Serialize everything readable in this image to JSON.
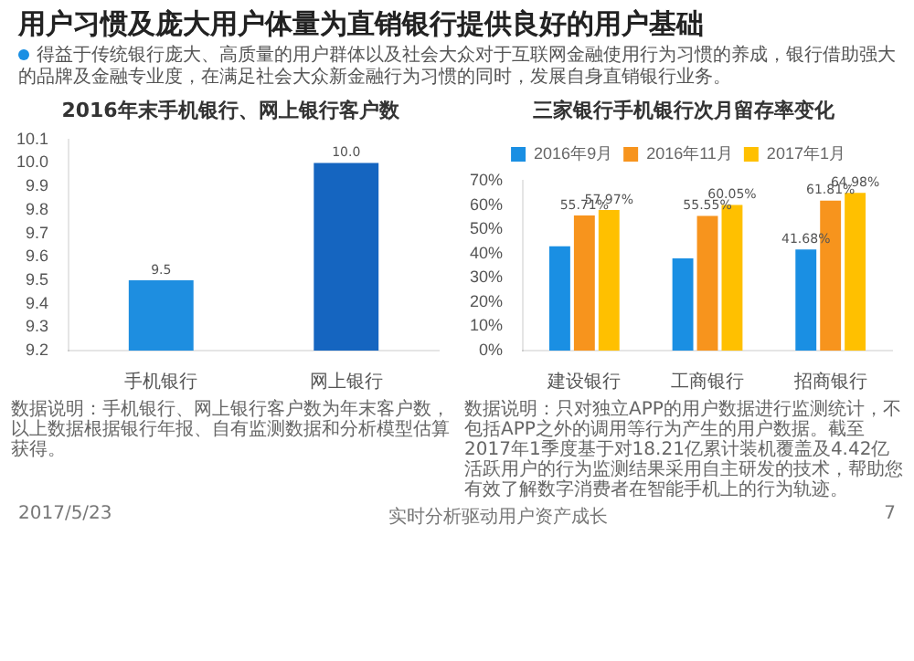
{
  "chart_data": [
    {
      "type": "bar",
      "title": "2016年末手机银行、网上银行客户数",
      "categories": [
        "手机银行",
        "网上银行"
      ],
      "values": [
        9.5,
        10.0
      ],
      "colors": [
        "#1e8ee0",
        "#1565c0"
      ],
      "value_labels": [
        "9.5",
        "10.0"
      ],
      "ylim": [
        9.2,
        10.1
      ],
      "yticks": [
        {
          "value": 9.2,
          "label": "9.2"
        },
        {
          "value": 9.3,
          "label": "9.3"
        },
        {
          "value": 9.4,
          "label": "9.4"
        },
        {
          "value": 9.5,
          "label": "9.5"
        },
        {
          "value": 9.6,
          "label": "9.6"
        },
        {
          "value": 9.7,
          "label": "9.7"
        },
        {
          "value": 9.8,
          "label": "9.8"
        },
        {
          "value": 9.9,
          "label": "9.9"
        },
        {
          "value": 10.0,
          "label": "10.0"
        },
        {
          "value": 10.1,
          "label": "10.1"
        }
      ],
      "grid": false,
      "legend": false,
      "annotations": [
        "用户习惯及庞大用户体量为直销银行提供良好的用户基础",
        "得益于传统银行庞大、高质量的用户群体以及社会大众对于互联网金融使用行为习惯的养成，银行借助强大的品牌及金融专业度，在满足社会大众新金融行为习惯的同时，发展自身直销银行业务。",
        "数据说明：手机银行、网上银行客户数为年末客户数，以上数据根据银行年报、自有监测数据和分析模型估算获得。",
        "2017/5/23",
        "实时分析驱动用户资产成长",
        "7"
      ]
    },
    {
      "type": "bar",
      "title": "三家银行手机银行次月留存率变化",
      "categories": [
        "建设银行",
        "工商银行",
        "招商银行"
      ],
      "series": [
        {
          "name": "2016年9月",
          "color": "#1a8fe3",
          "values": [
            43,
            38,
            41.68
          ],
          "value_labels": [
            null,
            null,
            "41.68%"
          ]
        },
        {
          "name": "2016年11月",
          "color": "#f7941d",
          "values": [
            55.71,
            55.55,
            61.81
          ],
          "value_labels": [
            "55.71%",
            "55.55%",
            "61.81%"
          ]
        },
        {
          "name": "2017年1月",
          "color": "#ffc000",
          "values": [
            57.97,
            60.05,
            64.98
          ],
          "value_labels": [
            "57.97%",
            "60.05%",
            "64.98%"
          ]
        }
      ],
      "ylim": [
        0,
        70
      ],
      "yticks": [
        {
          "value": 0,
          "label": "0%"
        },
        {
          "value": 10,
          "label": "10%"
        },
        {
          "value": 20,
          "label": "20%"
        },
        {
          "value": 30,
          "label": "30%"
        },
        {
          "value": 40,
          "label": "40%"
        },
        {
          "value": 50,
          "label": "50%"
        },
        {
          "value": 60,
          "label": "60%"
        },
        {
          "value": 70,
          "label": "70%"
        }
      ],
      "grid": false,
      "legend": "top",
      "annotations": [
        "数据说明：只对独立APP的用户数据进行监测统计，不包括APP之外的调用等行为产生的用户数据。截至2017年1季度基于对18.21亿累计装机覆盖及4.42亿活跃用户的行为监测结果采用自主研发的技术，帮助您有效了解数字消费者在智能手机上的行为轨迹。"
      ]
    }
  ]
}
